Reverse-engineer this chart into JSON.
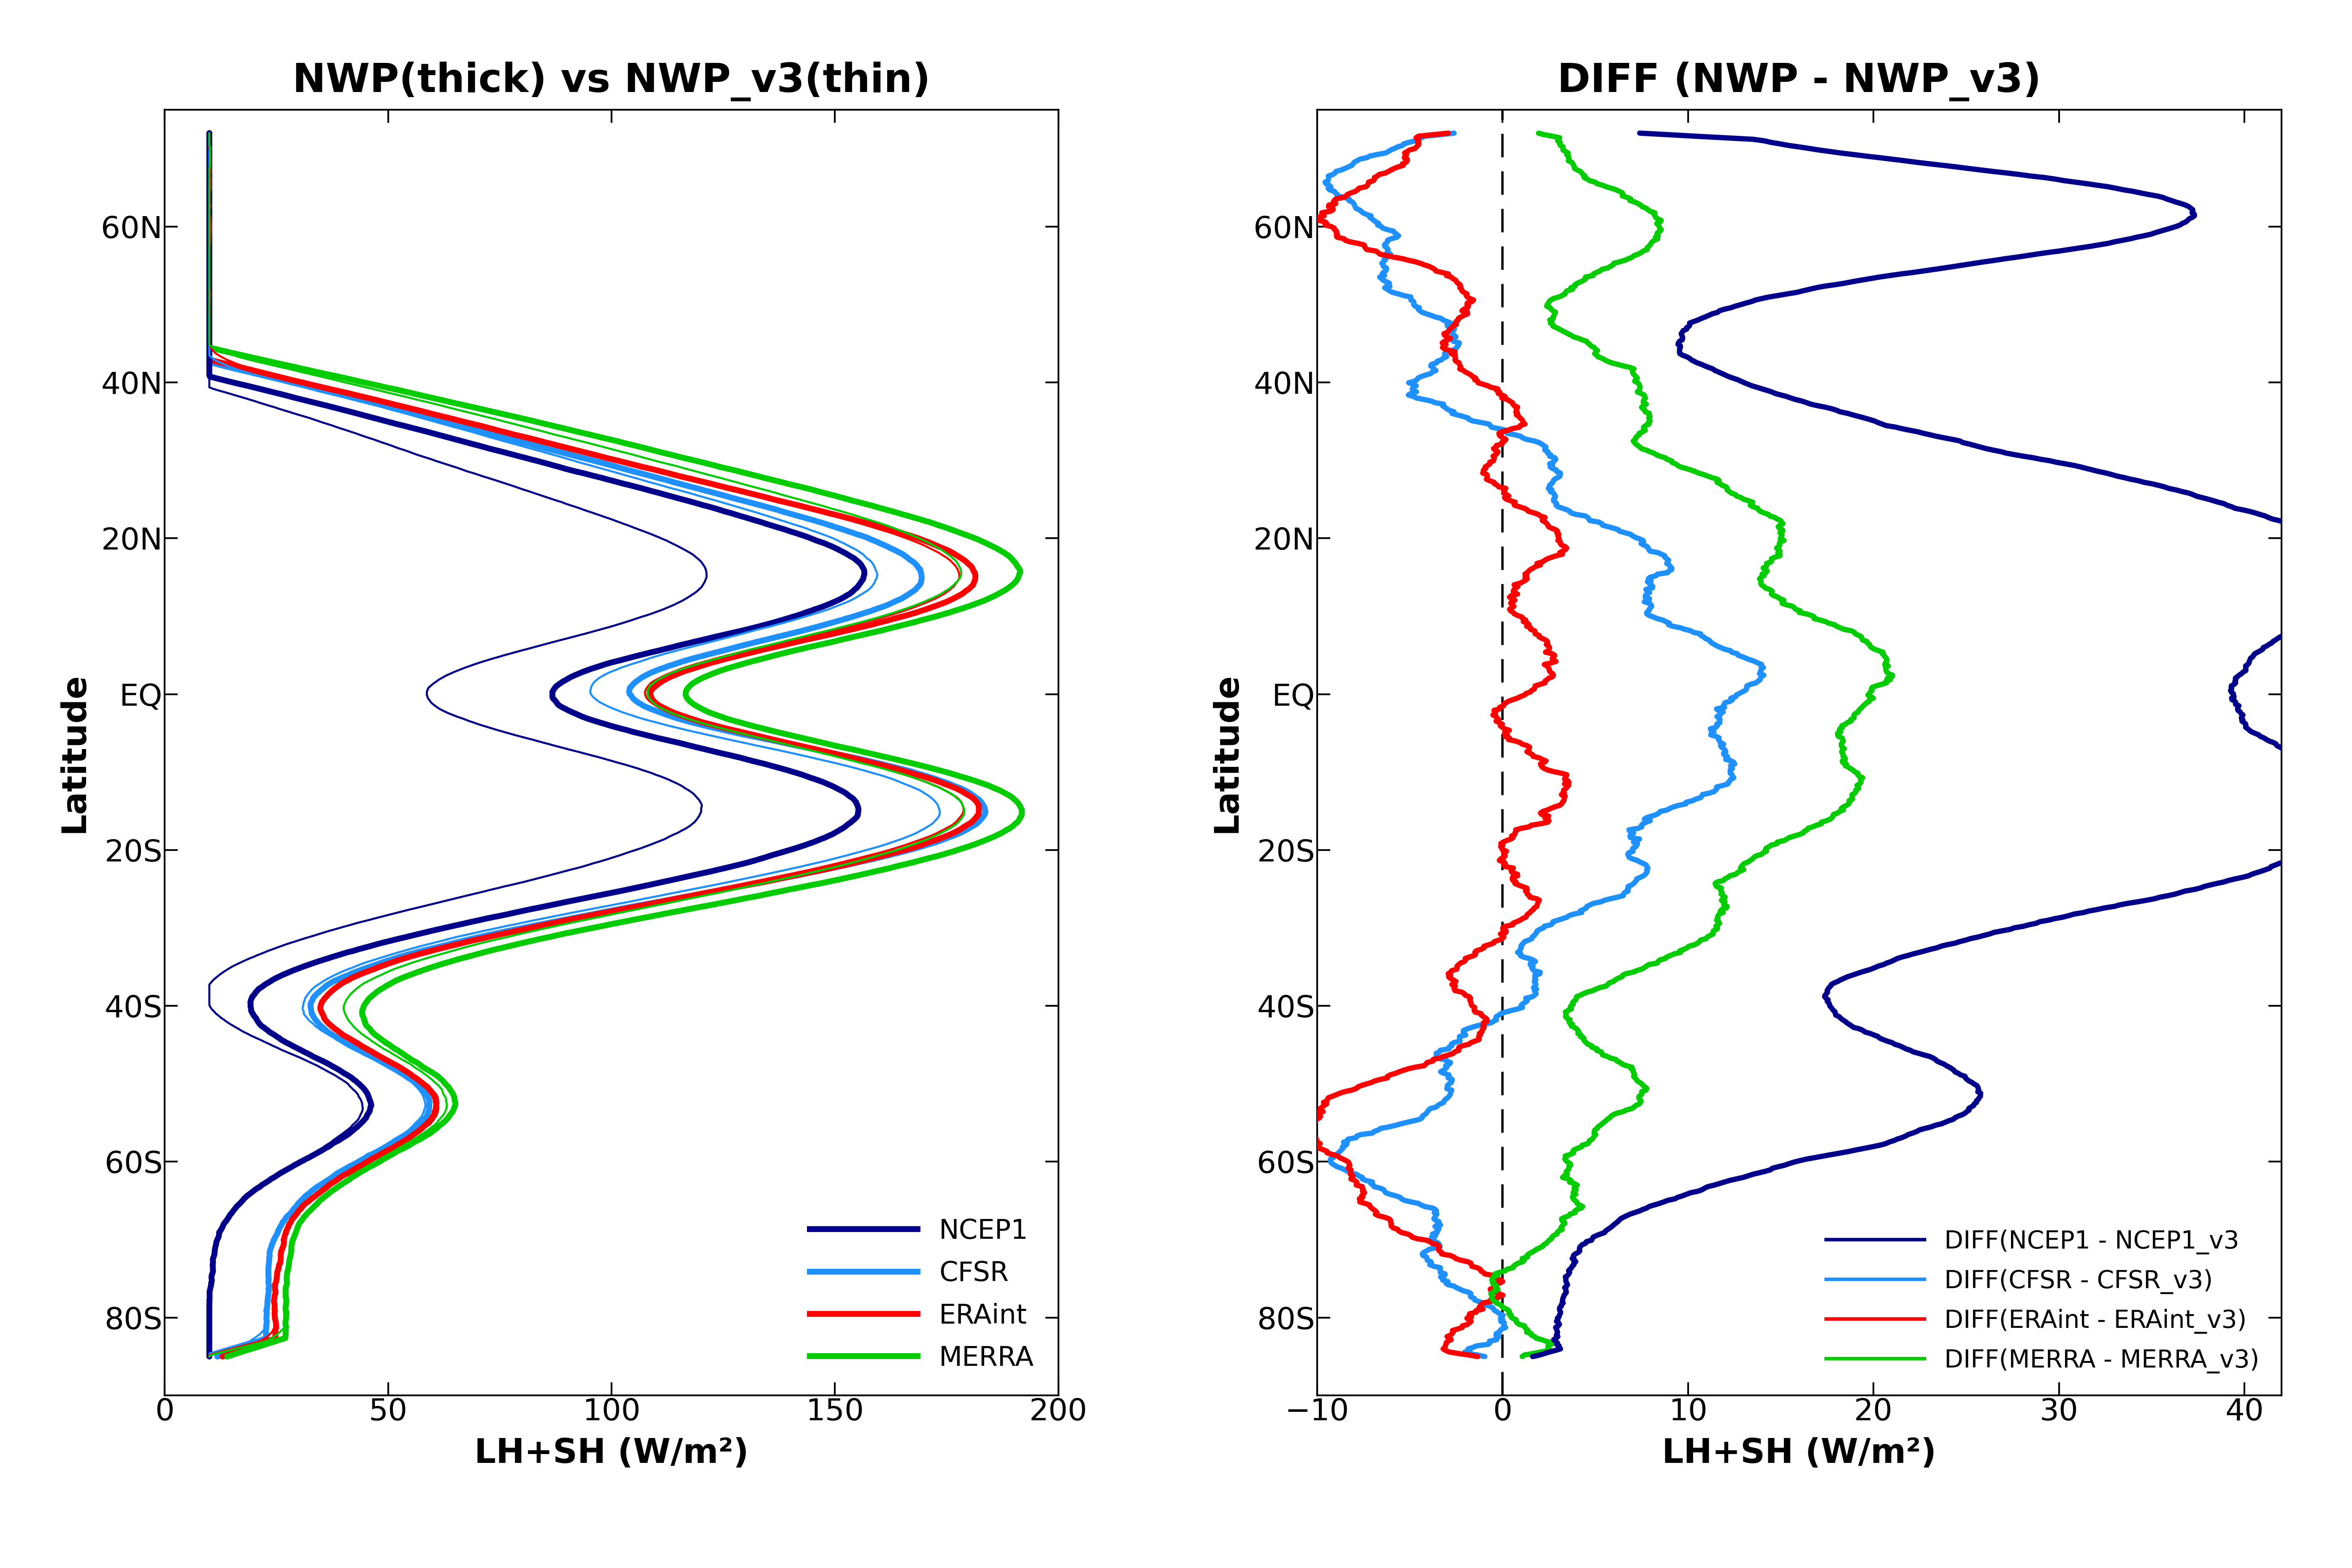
{
  "title_left": "NWP(thick) vs NWP_v3(thin)",
  "title_right": "DIFF (NWP - NWP_v3)",
  "xlabel": "LH+SH (W/m²)",
  "ylabel": "Latitude",
  "colors": {
    "NCEP1": "#00008B",
    "CFSR": "#1E90FF",
    "ERAint": "#FF0000",
    "MERRA": "#00CC00"
  },
  "legend_labels_left": [
    "NCEP1",
    "CFSR",
    "ERAint",
    "MERRA"
  ],
  "legend_labels_right": [
    "DIFF(NCEP1 - NCEP1_v3",
    "DIFF(CFSR - CFSR_v3)",
    "DIFF(ERAint - ERAint_v3)",
    "DIFF(MERRA - MERRA_v3)"
  ],
  "xlim_left": [
    0,
    200
  ],
  "xlim_right": [
    -10,
    42
  ],
  "xticks_left": [
    0,
    50,
    100,
    150,
    200
  ],
  "xticks_right": [
    -10,
    0,
    10,
    20,
    30,
    40
  ],
  "ytick_positions": [
    -80,
    -60,
    -40,
    -20,
    0,
    20,
    40,
    60
  ],
  "ytick_labels": [
    "80S",
    "60S",
    "40S",
    "20S",
    "EQ",
    "20N",
    "40N",
    "60N"
  ],
  "ylim": [
    -90,
    75
  ],
  "title_fontsize": 68,
  "label_fontsize": 58,
  "tick_fontsize": 52,
  "legend_fontsize": 46,
  "linewidth_thick": 10,
  "linewidth_thin": 3.5,
  "linewidth_diff": 9
}
